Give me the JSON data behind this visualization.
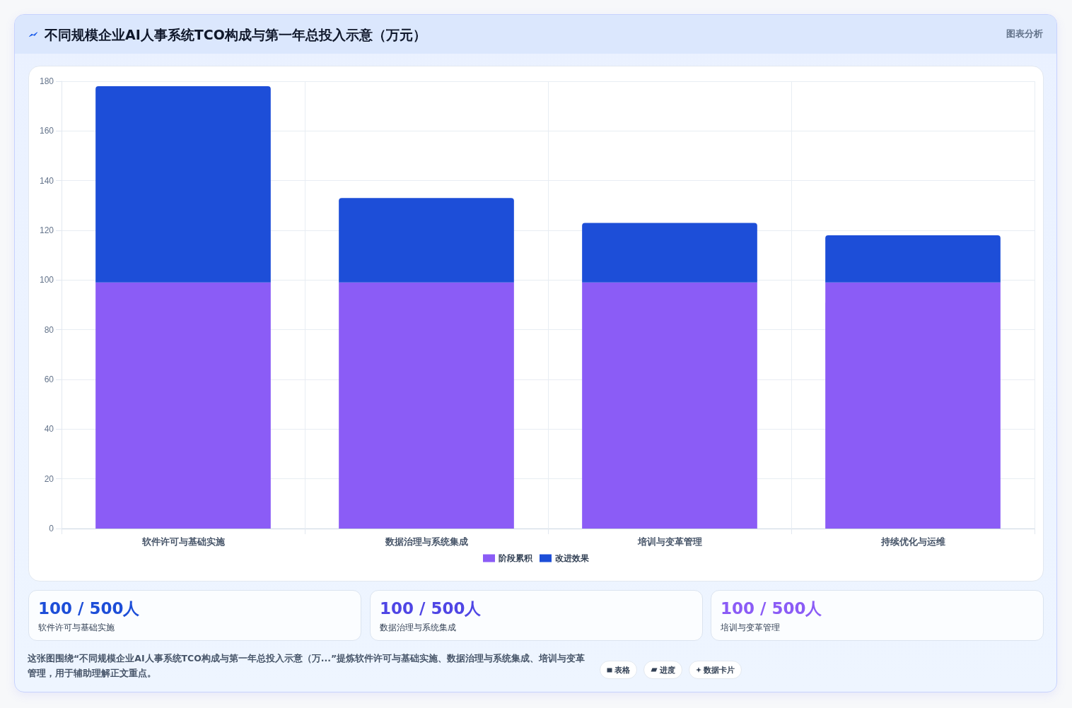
{
  "chart_data": [
    {
      "type": "bar",
      "title": "不同规模企业AI人事系统TCO构成与第一年总投入示意（万元）",
      "annotations": [
        "图表分析",
        "这张图围绕“不同规模企业AI人事系统TCO构成与第一年总投入示意（万...”提炼软件许可与基础实施、数据治理与系统集成、培训与变革管理，用于辅助理解正文重点。",
        "表格",
        "进度",
        "数据卡片"
      ],
      "categories": [
        "软件许可与基础实施",
        "数据治理与系统集成",
        "培训与变革管理",
        "持续优化与运维"
      ],
      "series": [
        {
          "name": "阶段累积",
          "color": "#8b5cf6",
          "values": [
            99,
            99,
            99,
            99
          ]
        },
        {
          "name": "改进效果",
          "color": "#1d4ed8",
          "values": [
            79,
            34,
            24,
            19
          ]
        }
      ],
      "stacked": true,
      "ylim": [
        0,
        180
      ],
      "yticks": [
        0,
        20,
        40,
        60,
        80,
        100,
        120,
        140,
        160,
        180
      ],
      "grid": true,
      "legend": "bottom"
    },
    {
      "type": "other",
      "annotations": [
        "100 / 500人",
        "软件许可与基础实施",
        "100 / 500人",
        "数据治理与系统集成",
        "100 / 500人",
        "培训与变革管理"
      ]
    }
  ]
}
